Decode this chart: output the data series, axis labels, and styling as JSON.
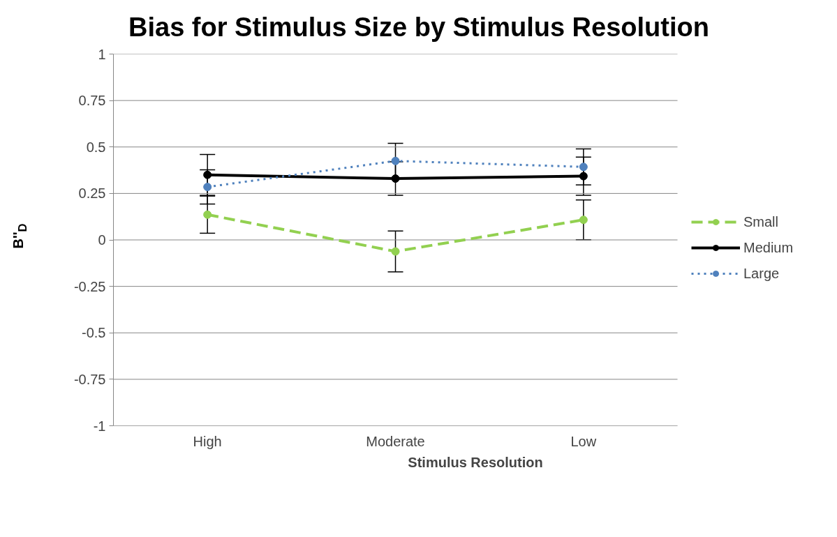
{
  "chart_data": {
    "type": "line",
    "title": "Bias for Stimulus Size by Stimulus Resolution",
    "xlabel": "Stimulus Resolution",
    "ylabel": "B''$_{D}$",
    "categories": [
      "High",
      "Moderate",
      "Low"
    ],
    "series": [
      {
        "name": "Small",
        "color": "#92d050",
        "values": [
          0.136,
          -0.062,
          0.108
        ],
        "errors": [
          0.1,
          0.11,
          0.107
        ],
        "line_style": "dashed"
      },
      {
        "name": "Medium",
        "color": "#000000",
        "values": [
          0.35,
          0.33,
          0.343
        ],
        "errors": [
          0.11,
          0.09,
          0.103
        ],
        "line_style": "solid"
      },
      {
        "name": "Large",
        "color": "#4f81bd",
        "values": [
          0.285,
          0.425,
          0.393
        ],
        "errors": [
          0.092,
          0.095,
          0.097
        ],
        "line_style": "dotted"
      }
    ],
    "ylim": [
      -1,
      1
    ],
    "yticks": [
      -1,
      -0.75,
      -0.5,
      -0.25,
      0,
      0.25,
      0.5,
      0.75,
      1
    ],
    "grid": "y",
    "legend": "right",
    "marker": "circle"
  }
}
